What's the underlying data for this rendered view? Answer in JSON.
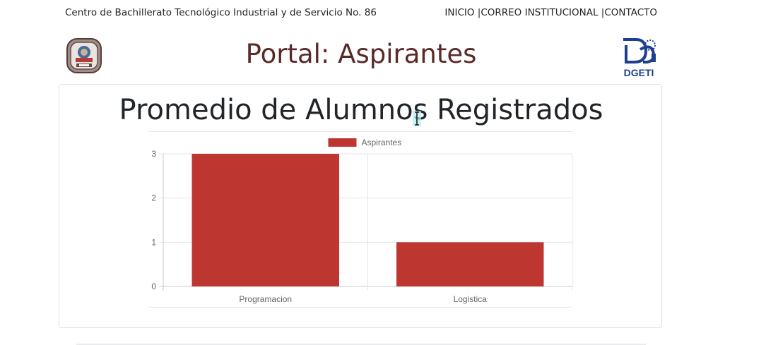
{
  "header": {
    "school_name": "Centro de Bachillerato Tecnológico Industrial y de Servicio No. 86",
    "nav": [
      "INICIO |",
      "CORREO INSTITUCIONAL |",
      "CONTACTO"
    ],
    "portal_title": "Portal: Aspirantes",
    "left_logo_icon": "school-crest-icon",
    "right_logo_icon": "dgeti-logo-icon",
    "right_logo_text": "DGETI"
  },
  "chart_data": {
    "type": "bar",
    "title": "Promedio de Alumnos Registrados",
    "categories": [
      "Programacion",
      "Logistica"
    ],
    "series": [
      {
        "name": "Aspirantes",
        "values": [
          3,
          1
        ],
        "color": "#bd3630"
      }
    ],
    "ylim": [
      0,
      3
    ],
    "yticks": [
      "0",
      "1",
      "2",
      "3"
    ],
    "legend": "top",
    "grid": true
  }
}
